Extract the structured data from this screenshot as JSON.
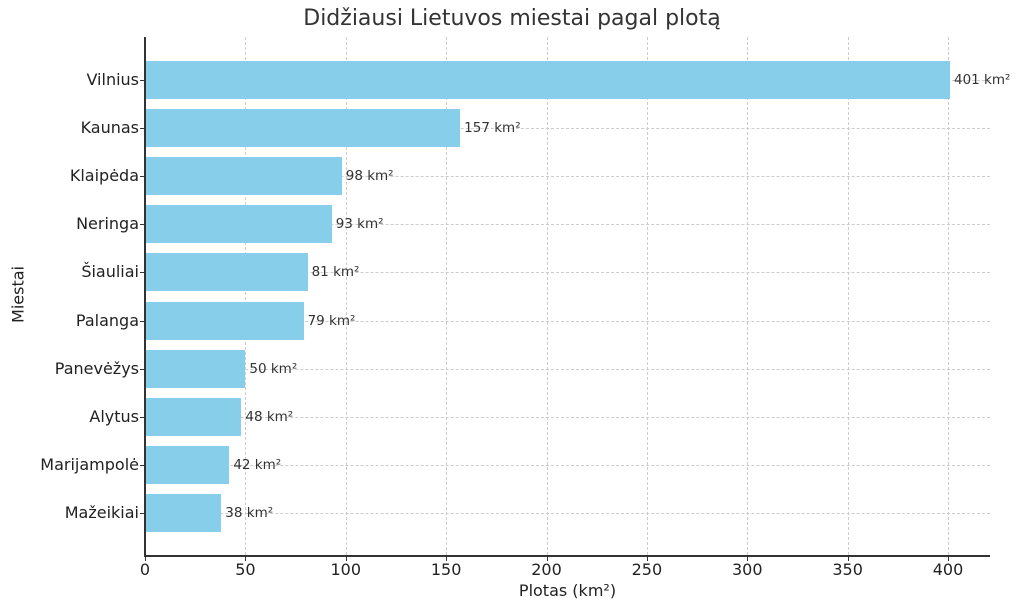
{
  "chart_data": {
    "type": "bar",
    "orientation": "horizontal",
    "title": "Didžiausi Lietuvos miestai pagal plotą",
    "xlabel": "Plotas (km²)",
    "ylabel": "Miestai",
    "categories": [
      "Vilnius",
      "Kaunas",
      "Klaipėda",
      "Neringa",
      "Šiauliai",
      "Palanga",
      "Panevėžys",
      "Alytus",
      "Marijampolė",
      "Mažeikiai"
    ],
    "values": [
      401,
      157,
      98,
      93,
      81,
      79,
      50,
      48,
      42,
      38
    ],
    "value_labels": [
      "401 km²",
      "157 km²",
      "98 km²",
      "93 km²",
      "81 km²",
      "79 km²",
      "50 km²",
      "48 km²",
      "42 km²",
      "38 km²"
    ],
    "xticks": [
      "0",
      "50",
      "100",
      "150",
      "200",
      "250",
      "300",
      "350",
      "400"
    ],
    "xlim": [
      0,
      421
    ],
    "grid": true,
    "bar_color": "#87ceeb",
    "legend": null
  }
}
